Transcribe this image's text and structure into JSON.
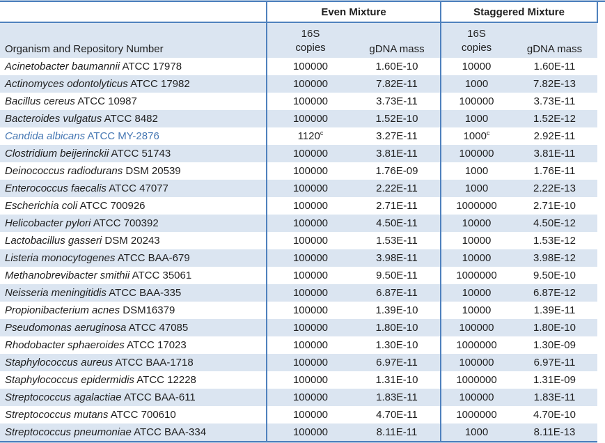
{
  "colors": {
    "band": "#dbe5f1",
    "border": "#4f81bd",
    "rule_light": "#b9cde3",
    "text": "#1f1f1f",
    "highlight": "#4577b3"
  },
  "table": {
    "groups": [
      {
        "label": "Even Mixture"
      },
      {
        "label": "Staggered Mixture"
      }
    ],
    "organism_header": "Organism and Repository Number",
    "sub": {
      "s16": "16S",
      "copies": "copies",
      "gdna": "gDNA mass"
    },
    "footnote_marker": "c",
    "rows": [
      {
        "name": "Acinetobacter baumannii",
        "repo": "ATCC 17978",
        "even_copies": "100000",
        "even_gdna": "1.60E-10",
        "stag_copies": "10000",
        "stag_gdna": "1.60E-11"
      },
      {
        "name": "Actinomyces odontolyticus",
        "repo": "ATCC 17982",
        "even_copies": "100000",
        "even_gdna": "7.82E-11",
        "stag_copies": "1000",
        "stag_gdna": "7.82E-13"
      },
      {
        "name": "Bacillus cereus",
        "repo": "ATCC 10987",
        "even_copies": "100000",
        "even_gdna": "3.73E-11",
        "stag_copies": "100000",
        "stag_gdna": "3.73E-11"
      },
      {
        "name": "Bacteroides vulgatus",
        "repo": "ATCC 8482",
        "even_copies": "100000",
        "even_gdna": "1.52E-10",
        "stag_copies": "1000",
        "stag_gdna": "1.52E-12"
      },
      {
        "name": "Candida albicans",
        "repo": "ATCC MY-2876",
        "even_copies": "1120",
        "even_sup": "c",
        "even_gdna": "3.27E-11",
        "stag_copies": "1000",
        "stag_sup": "c",
        "stag_gdna": "2.92E-11",
        "highlight": true
      },
      {
        "name": "Clostridium beijerinckii",
        "repo": "ATCC 51743",
        "even_copies": "100000",
        "even_gdna": "3.81E-11",
        "stag_copies": "100000",
        "stag_gdna": "3.81E-11"
      },
      {
        "name": "Deinococcus radiodurans",
        "repo": "DSM 20539",
        "even_copies": "100000",
        "even_gdna": "1.76E-09",
        "stag_copies": "1000",
        "stag_gdna": "1.76E-11"
      },
      {
        "name": "Enterococcus faecalis",
        "repo": "ATCC 47077",
        "even_copies": "100000",
        "even_gdna": "2.22E-11",
        "stag_copies": "1000",
        "stag_gdna": "2.22E-13"
      },
      {
        "name": "Escherichia coli",
        "repo": "ATCC 700926",
        "even_copies": "100000",
        "even_gdna": "2.71E-11",
        "stag_copies": "1000000",
        "stag_gdna": "2.71E-10"
      },
      {
        "name": "Helicobacter pylori",
        "repo": "ATCC 700392",
        "even_copies": "100000",
        "even_gdna": "4.50E-11",
        "stag_copies": "10000",
        "stag_gdna": "4.50E-12"
      },
      {
        "name": "Lactobacillus gasseri",
        "repo": "DSM 20243",
        "even_copies": "100000",
        "even_gdna": "1.53E-11",
        "stag_copies": "10000",
        "stag_gdna": "1.53E-12"
      },
      {
        "name": "Listeria monocytogenes",
        "repo": "ATCC BAA-679",
        "even_copies": "100000",
        "even_gdna": "3.98E-11",
        "stag_copies": "10000",
        "stag_gdna": "3.98E-12"
      },
      {
        "name": "Methanobrevibacter smithii",
        "repo": "ATCC 35061",
        "even_copies": "100000",
        "even_gdna": "9.50E-11",
        "stag_copies": "1000000",
        "stag_gdna": "9.50E-10"
      },
      {
        "name": "Neisseria meningitidis",
        "repo": "ATCC BAA-335",
        "even_copies": "100000",
        "even_gdna": "6.87E-11",
        "stag_copies": "10000",
        "stag_gdna": "6.87E-12"
      },
      {
        "name": "Propionibacterium acnes",
        "repo": "DSM16379",
        "even_copies": "100000",
        "even_gdna": "1.39E-10",
        "stag_copies": "10000",
        "stag_gdna": "1.39E-11"
      },
      {
        "name": "Pseudomonas aeruginosa",
        "repo": "ATCC 47085",
        "even_copies": "100000",
        "even_gdna": "1.80E-10",
        "stag_copies": "100000",
        "stag_gdna": "1.80E-10"
      },
      {
        "name": "Rhodobacter sphaeroides",
        "repo": "ATCC 17023",
        "even_copies": "100000",
        "even_gdna": "1.30E-10",
        "stag_copies": "1000000",
        "stag_gdna": "1.30E-09"
      },
      {
        "name": "Staphylococcus aureus",
        "repo": "ATCC BAA-1718",
        "even_copies": "100000",
        "even_gdna": "6.97E-11",
        "stag_copies": "100000",
        "stag_gdna": "6.97E-11"
      },
      {
        "name": "Staphylococcus epidermidis",
        "repo": "ATCC 12228",
        "even_copies": "100000",
        "even_gdna": "1.31E-10",
        "stag_copies": "1000000",
        "stag_gdna": "1.31E-09"
      },
      {
        "name": "Streptococcus agalactiae",
        "repo": "ATCC BAA-611",
        "even_copies": "100000",
        "even_gdna": "1.83E-11",
        "stag_copies": "100000",
        "stag_gdna": "1.83E-11"
      },
      {
        "name": "Streptococcus mutans",
        "repo": "ATCC 700610",
        "even_copies": "100000",
        "even_gdna": "4.70E-11",
        "stag_copies": "1000000",
        "stag_gdna": "4.70E-10"
      },
      {
        "name": "Streptococcus pneumoniae",
        "repo": "ATCC BAA-334",
        "even_copies": "100000",
        "even_gdna": "8.11E-11",
        "stag_copies": "1000",
        "stag_gdna": "8.11E-13"
      }
    ]
  }
}
